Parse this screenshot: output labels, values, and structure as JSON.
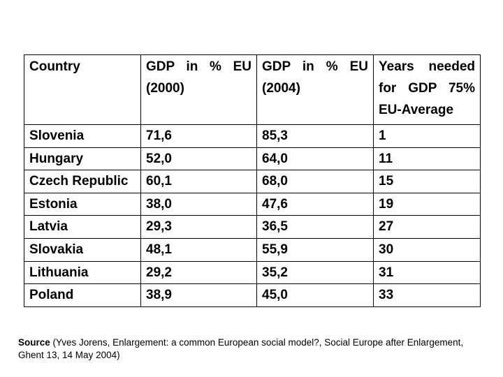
{
  "table": {
    "headers": [
      {
        "lines": [
          "Country"
        ]
      },
      {
        "lines": [
          "GDP in % EU",
          "(2000)"
        ]
      },
      {
        "lines": [
          "GDP in % EU",
          "(2004)"
        ]
      },
      {
        "lines": [
          "Years needed",
          "for GDP 75%",
          "EU-Average"
        ]
      }
    ],
    "rows": [
      {
        "country": "Slovenia",
        "gdp_2000": "71,6",
        "gdp_2004": "85,3",
        "years": "1"
      },
      {
        "country": "Hungary",
        "gdp_2000": "52,0",
        "gdp_2004": "64,0",
        "years": "11"
      },
      {
        "country": "Czech Republic",
        "gdp_2000": "60,1",
        "gdp_2004": "68,0",
        "years": "15"
      },
      {
        "country": "Estonia",
        "gdp_2000": "38,0",
        "gdp_2004": "47,6",
        "years": "19"
      },
      {
        "country": "Latvia",
        "gdp_2000": "29,3",
        "gdp_2004": "36,5",
        "years": "27"
      },
      {
        "country": "Slovakia",
        "gdp_2000": "48,1",
        "gdp_2004": "55,9",
        "years": "30"
      },
      {
        "country": "Lithuania",
        "gdp_2000": "29,2",
        "gdp_2004": "35,2",
        "years": "31"
      },
      {
        "country": "Poland",
        "gdp_2000": "38,9",
        "gdp_2004": "45,0",
        "years": "33"
      }
    ]
  },
  "source": {
    "label": "Source",
    "text": " (Yves Jorens, Enlargement: a common European social model?, Social Europe after Enlargement, Ghent 13, 14 May 2004)"
  }
}
